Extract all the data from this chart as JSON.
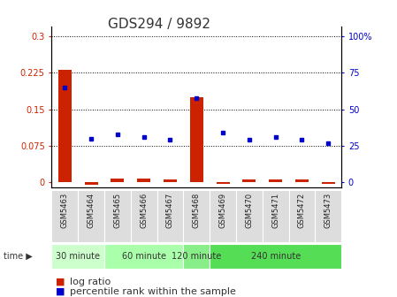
{
  "title": "GDS294 / 9892",
  "samples": [
    "GSM5463",
    "GSM5464",
    "GSM5465",
    "GSM5466",
    "GSM5467",
    "GSM5468",
    "GSM5469",
    "GSM5470",
    "GSM5471",
    "GSM5472",
    "GSM5473"
  ],
  "log_ratio": [
    0.232,
    -0.005,
    0.008,
    0.008,
    0.005,
    0.175,
    -0.003,
    0.005,
    0.005,
    0.005,
    -0.003
  ],
  "percentile_rank": [
    65,
    30,
    33,
    31,
    29,
    58,
    34,
    29,
    31,
    29,
    27
  ],
  "groups": [
    {
      "label": "30 minute",
      "start": 0,
      "end": 2,
      "color": "#ccffcc"
    },
    {
      "label": "60 minute",
      "start": 2,
      "end": 5,
      "color": "#aaffaa"
    },
    {
      "label": "120 minute",
      "start": 5,
      "end": 6,
      "color": "#88ee88"
    },
    {
      "label": "240 minute",
      "start": 6,
      "end": 11,
      "color": "#55dd55"
    }
  ],
  "left_yticks": [
    0,
    0.075,
    0.15,
    0.225,
    0.3
  ],
  "left_ylim": [
    -0.01,
    0.32
  ],
  "right_yticks": [
    0,
    25,
    50,
    75,
    100
  ],
  "right_ylim": [
    -3.33,
    106.67
  ],
  "bar_color": "#cc2200",
  "dot_color": "#0000cc",
  "grid_color": "#000000",
  "bg_color": "#ffffff",
  "sample_bg": "#dddddd",
  "title_fontsize": 11,
  "tick_fontsize": 7,
  "label_fontsize": 8,
  "legend_fontsize": 8,
  "left_ylabel_color": "#cc2200",
  "right_ylabel_color": "#0000cc"
}
